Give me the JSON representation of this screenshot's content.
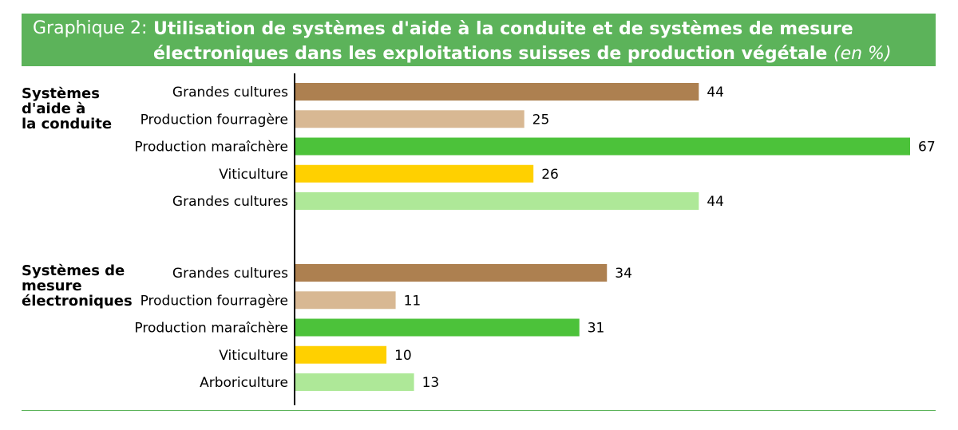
{
  "header": {
    "prefix": "Graphique 2:",
    "title_line1": "Utilisation de systèmes d'aide à la conduite et de systèmes de mesure",
    "title_line2": "électroniques dans les exploitations suisses de production végétale",
    "unit": "(en %)"
  },
  "colors": {
    "banner": "#5cb35a",
    "grandes_cultures": "#ad8050",
    "production_fourragere": "#d8b893",
    "production_maraichere": "#4cc23a",
    "viticulture": "#ffd000",
    "light_green": "#aee898"
  },
  "chart_data": {
    "type": "bar",
    "orientation": "horizontal",
    "unit": "%",
    "xlim": [
      0,
      67
    ],
    "groups": [
      {
        "name": "Systèmes\nd'aide à\nla conduite",
        "categories": [
          "Grandes cultures",
          "Production fourragère",
          "Production maraîchère",
          "Viticulture",
          "Grandes cultures"
        ],
        "values": [
          44,
          25,
          67,
          26,
          44
        ],
        "colors": [
          "#ad8050",
          "#d8b893",
          "#4cc23a",
          "#ffd000",
          "#aee898"
        ]
      },
      {
        "name": "Systèmes de\nmesure\nélectroniques",
        "categories": [
          "Grandes cultures",
          "Production fourragère",
          "Production maraîchère",
          "Viticulture",
          "Arboriculture"
        ],
        "values": [
          34,
          11,
          31,
          10,
          13
        ],
        "colors": [
          "#ad8050",
          "#d8b893",
          "#4cc23a",
          "#ffd000",
          "#aee898"
        ]
      }
    ]
  }
}
